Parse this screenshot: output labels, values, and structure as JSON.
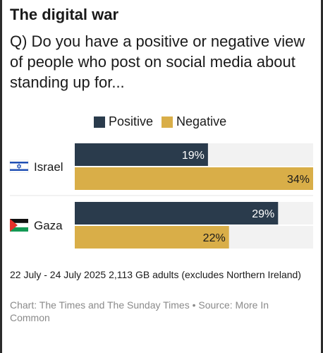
{
  "header": {
    "title": "The digital war",
    "subtitle": "Q) Do you have a positive or negative view of people who post on social media about standing up for..."
  },
  "chart_data": {
    "type": "bar",
    "orientation": "horizontal",
    "categories": [
      "Israel",
      "Gaza"
    ],
    "series": [
      {
        "name": "Positive",
        "values": [
          19,
          29
        ],
        "labels": [
          "19%",
          "29%"
        ],
        "color": "#2a3b4c"
      },
      {
        "name": "Negative",
        "values": [
          34,
          22
        ],
        "labels": [
          "34%",
          "22%"
        ],
        "color": "#d9ae48"
      }
    ],
    "xlim": [
      0,
      34
    ],
    "track_color": "#f2f2f2",
    "category_icons": [
      "israel-flag-icon",
      "palestine-flag-icon"
    ],
    "legend_position": "top"
  },
  "footer": {
    "note": "22 July - 24 July 2025 2,113 GB adults (excludes Northern Ireland)",
    "source": "Chart: The Times and The Sunday Times • Source: More In Common"
  }
}
